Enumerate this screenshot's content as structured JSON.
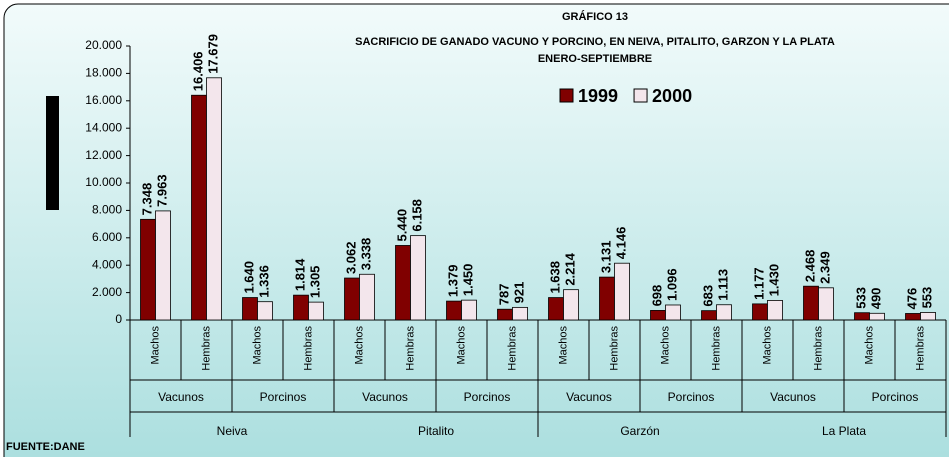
{
  "chart_data": {
    "type": "bar",
    "title": [
      "GRÁFICO 13",
      "SACRIFICIO DE GANADO VACUNO Y PORCINO, EN NEIVA, PITALITO, GARZON Y LA PLATA",
      "ENERO-SEPTIEMBRE"
    ],
    "source": "FUENTE:DANE",
    "categories": [
      "Machos",
      "Hembras",
      "Machos",
      "Hembras",
      "Machos",
      "Hembras",
      "Machos",
      "Hembras",
      "Machos",
      "Hembras",
      "Machos",
      "Hembras",
      "Machos",
      "Hembras",
      "Machos",
      "Hembras"
    ],
    "subgroups": [
      "Vacunos",
      "Porcinos",
      "Vacunos",
      "Porcinos",
      "Vacunos",
      "Porcinos",
      "Vacunos",
      "Porcinos"
    ],
    "groups": [
      "Neiva",
      "Pitalito",
      "Garzón",
      "La Plata"
    ],
    "series": [
      {
        "name": "1999",
        "color": "#800000",
        "values": [
          7348,
          16406,
          1640,
          1814,
          3062,
          5440,
          1379,
          787,
          1638,
          3131,
          698,
          683,
          1177,
          2468,
          533,
          476
        ],
        "value_labels": [
          "7.348",
          "16.406",
          "1.640",
          "1.814",
          "3.062",
          "5.440",
          "1.379",
          "787",
          "1.638",
          "3.131",
          "698",
          "683",
          "1.177",
          "2.468",
          "533",
          "476"
        ]
      },
      {
        "name": "2000",
        "color": "#f3e6ec",
        "values": [
          7963,
          17679,
          1336,
          1305,
          3338,
          6158,
          1450,
          921,
          2214,
          4146,
          1096,
          1113,
          1430,
          2349,
          490,
          553
        ],
        "value_labels": [
          "7.963",
          "17.679",
          "1.336",
          "1.305",
          "3.338",
          "6.158",
          "1.450",
          "921",
          "2.214",
          "4.146",
          "1.096",
          "1.113",
          "1.430",
          "2.349",
          "490",
          "553"
        ]
      }
    ],
    "ylim": [
      0,
      20000
    ],
    "yticks": [
      0,
      {
        "value": 2000,
        "label": "2.000"
      },
      {
        "value": 4000,
        "label": "4.000"
      },
      {
        "value": 6000,
        "label": "6.000"
      },
      {
        "value": 8000,
        "label": "8.000"
      },
      {
        "value": 10000,
        "label": "10.000"
      },
      {
        "value": 12000,
        "label": "12.000"
      },
      {
        "value": 14000,
        "label": "14.000"
      },
      {
        "value": 16000,
        "label": "16.000"
      },
      {
        "value": 18000,
        "label": "18.000"
      },
      {
        "value": 20000,
        "label": "20.000"
      }
    ]
  }
}
